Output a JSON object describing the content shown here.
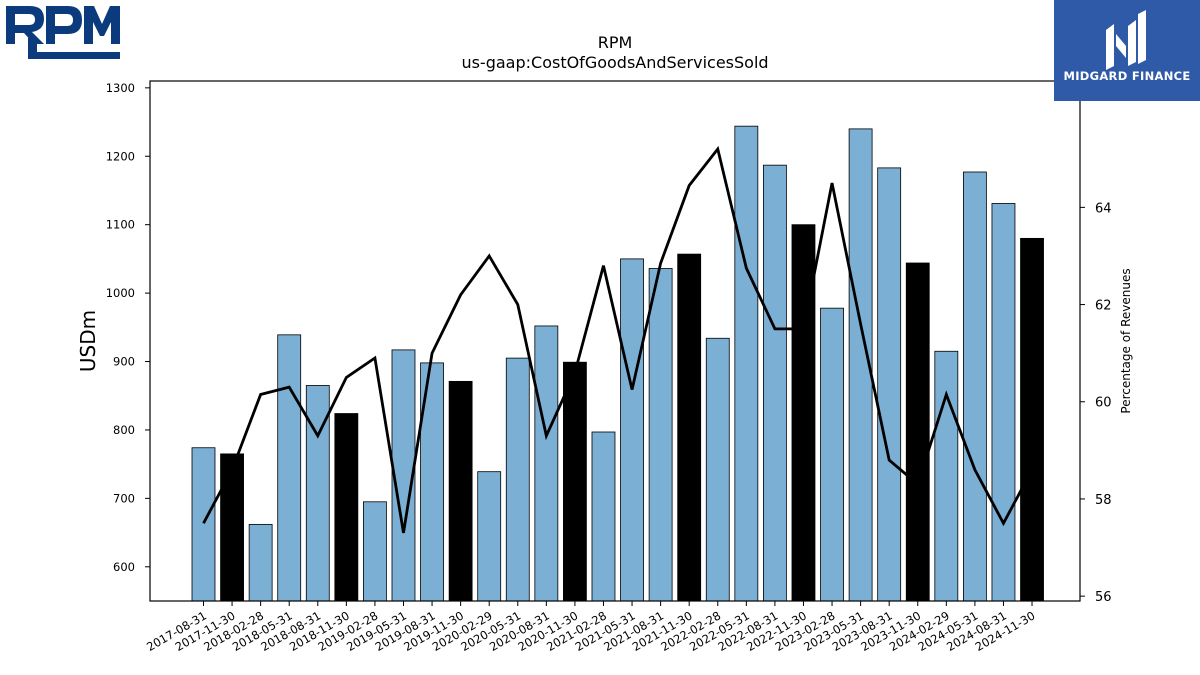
{
  "logos": {
    "left_text": "RPM",
    "right_text": "MIDGARD FINANCE"
  },
  "chart_data": {
    "type": "bar",
    "title": "RPM",
    "subtitle": "us-gaap:CostOfGoodsAndServicesSold",
    "ylabel": "USDm",
    "y2label": "Percentage of Revenues",
    "ylim": [
      550,
      1310
    ],
    "y2lim": [
      55.9,
      66.6
    ],
    "yticks": [
      600,
      700,
      800,
      900,
      1000,
      1100,
      1200,
      1300
    ],
    "y2ticks": [
      56,
      58,
      60,
      62,
      64
    ],
    "colors": {
      "quarter": "#7bafd4",
      "fiscal_year_end": "#000000",
      "line": "#000000"
    },
    "categories": [
      "2017-08-31",
      "2017-11-30",
      "2018-02-28",
      "2018-05-31",
      "2018-08-31",
      "2018-11-30",
      "2019-02-28",
      "2019-05-31",
      "2019-08-31",
      "2019-11-30",
      "2020-02-29",
      "2020-05-31",
      "2020-08-31",
      "2020-11-30",
      "2021-02-28",
      "2021-05-31",
      "2021-08-31",
      "2021-11-30",
      "2022-02-28",
      "2022-05-31",
      "2022-08-31",
      "2022-11-30",
      "2023-02-28",
      "2023-05-31",
      "2023-08-31",
      "2023-11-30",
      "2024-02-29",
      "2024-05-31",
      "2024-08-31",
      "2024-11-30"
    ],
    "series": [
      {
        "type": "bar",
        "values": [
          774,
          765,
          662,
          939,
          865,
          824,
          695,
          917,
          898,
          871,
          739,
          905,
          952,
          899,
          797,
          1050,
          1036,
          1057,
          934,
          1244,
          1187,
          1100,
          978,
          1240,
          1183,
          1044,
          915,
          1177,
          1131,
          1080
        ],
        "highlight": [
          false,
          true,
          false,
          false,
          false,
          true,
          false,
          false,
          false,
          true,
          false,
          false,
          false,
          true,
          false,
          false,
          false,
          true,
          false,
          false,
          false,
          true,
          false,
          false,
          false,
          true,
          false,
          false,
          false,
          true
        ]
      },
      {
        "type": "line",
        "axis": "secondary",
        "values": [
          57.5,
          58.6,
          60.15,
          60.3,
          59.3,
          60.5,
          60.9,
          57.3,
          61.0,
          62.2,
          63.0,
          62.0,
          59.3,
          60.6,
          62.8,
          60.25,
          62.85,
          64.45,
          65.2,
          62.75,
          61.5,
          61.5,
          64.5,
          61.6,
          58.8,
          58.3,
          60.15,
          58.6,
          57.5,
          58.6
        ]
      }
    ]
  }
}
